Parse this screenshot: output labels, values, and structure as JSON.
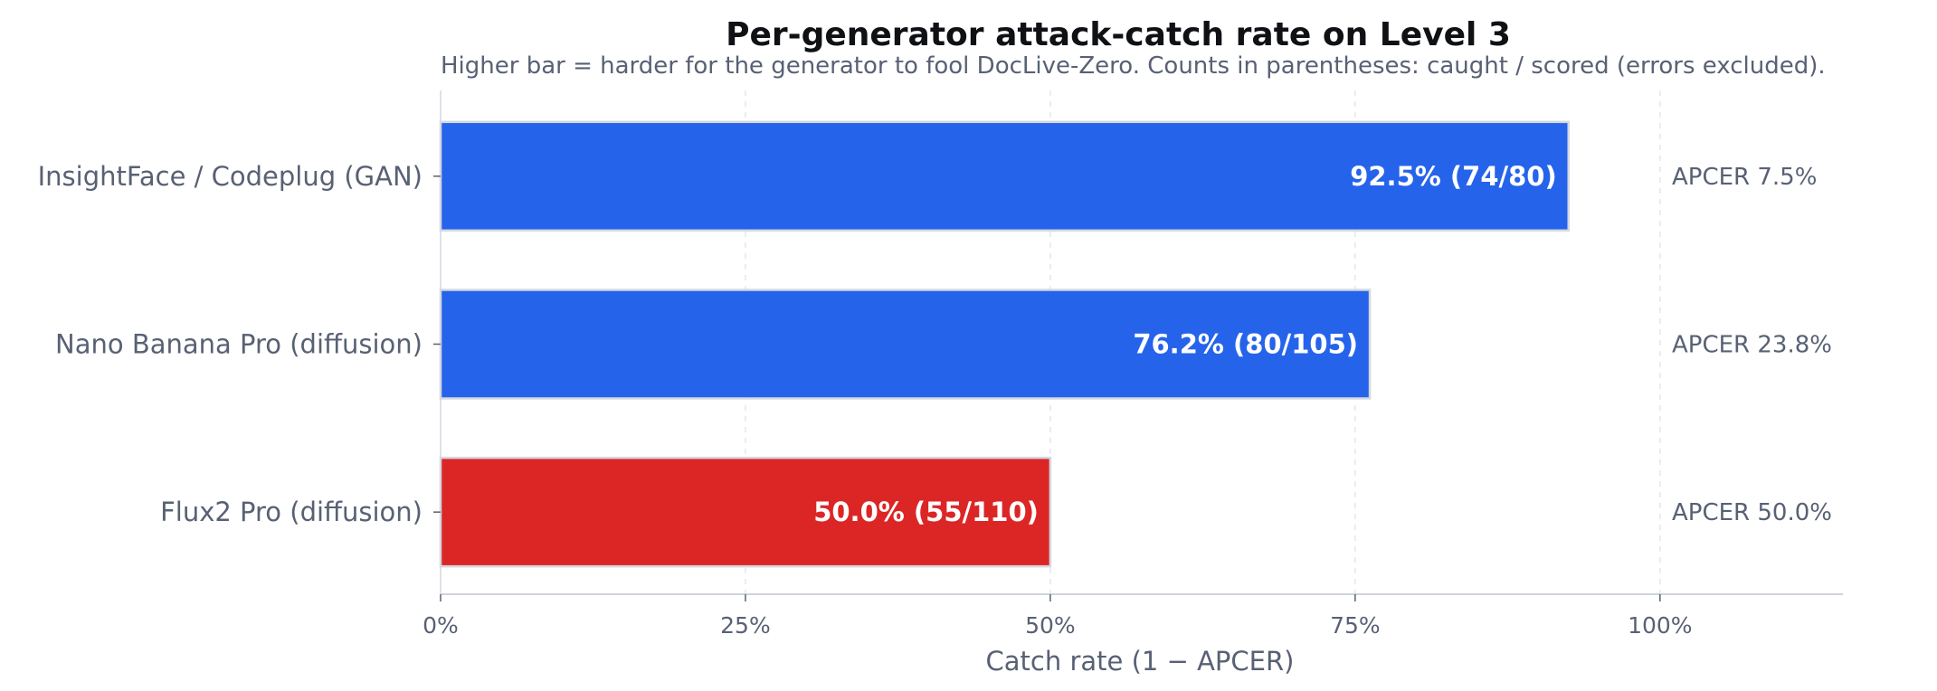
{
  "chart_data": {
    "type": "bar",
    "orientation": "horizontal",
    "title": "Per-generator attack-catch rate on Level 3",
    "subtitle": "Higher bar = harder for the generator to fool DocLive-Zero. Counts in parentheses: caught / scored (errors excluded).",
    "xlabel": "Catch rate  (1 − APCER)",
    "ylabel": "",
    "xlim": [
      0,
      115
    ],
    "xticks": [
      0,
      25,
      50,
      75,
      100
    ],
    "xtick_labels": [
      "0%",
      "25%",
      "50%",
      "75%",
      "100%"
    ],
    "grid": "vertical dashed",
    "categories": [
      "InsightFace / Codeplug (GAN)",
      "Nano Banana Pro (diffusion)",
      "Flux2 Pro (diffusion)"
    ],
    "values": [
      92.5,
      76.2,
      50.0
    ],
    "bar_labels": [
      "92.5%  (74/80)",
      "76.2%  (80/105)",
      "50.0%  (55/110)"
    ],
    "apcer_labels": [
      "APCER 7.5%",
      "APCER 23.8%",
      "APCER 50.0%"
    ],
    "colors": [
      "#2563eb",
      "#2563eb",
      "#dc2626"
    ]
  }
}
